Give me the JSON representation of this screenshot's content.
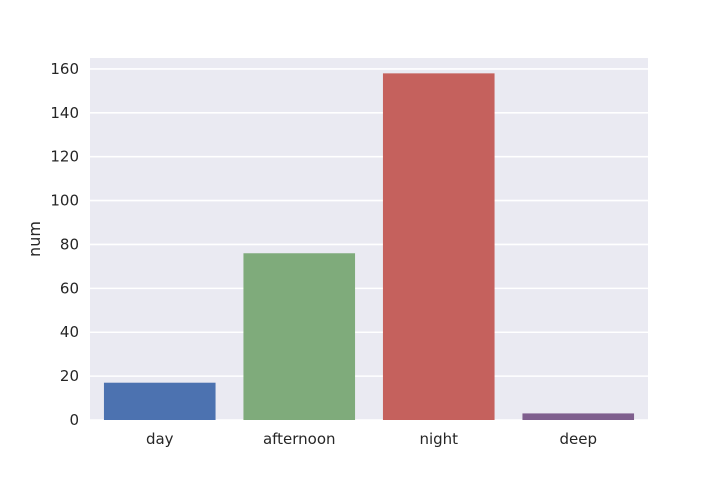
{
  "chart_data": {
    "type": "bar",
    "categories": [
      "day",
      "afternoon",
      "night",
      "deep"
    ],
    "values": [
      17,
      76,
      158,
      3
    ],
    "colors": [
      "#4c72b0",
      "#7fab7b",
      "#c5615d",
      "#7f5f8e"
    ],
    "xlabel": "",
    "ylabel": "num",
    "ylim": [
      0,
      165
    ],
    "yticks": [
      0,
      20,
      40,
      60,
      80,
      100,
      120,
      140,
      160
    ],
    "grid": true,
    "background": "#eaeaf2",
    "grid_color": "#ffffff"
  }
}
